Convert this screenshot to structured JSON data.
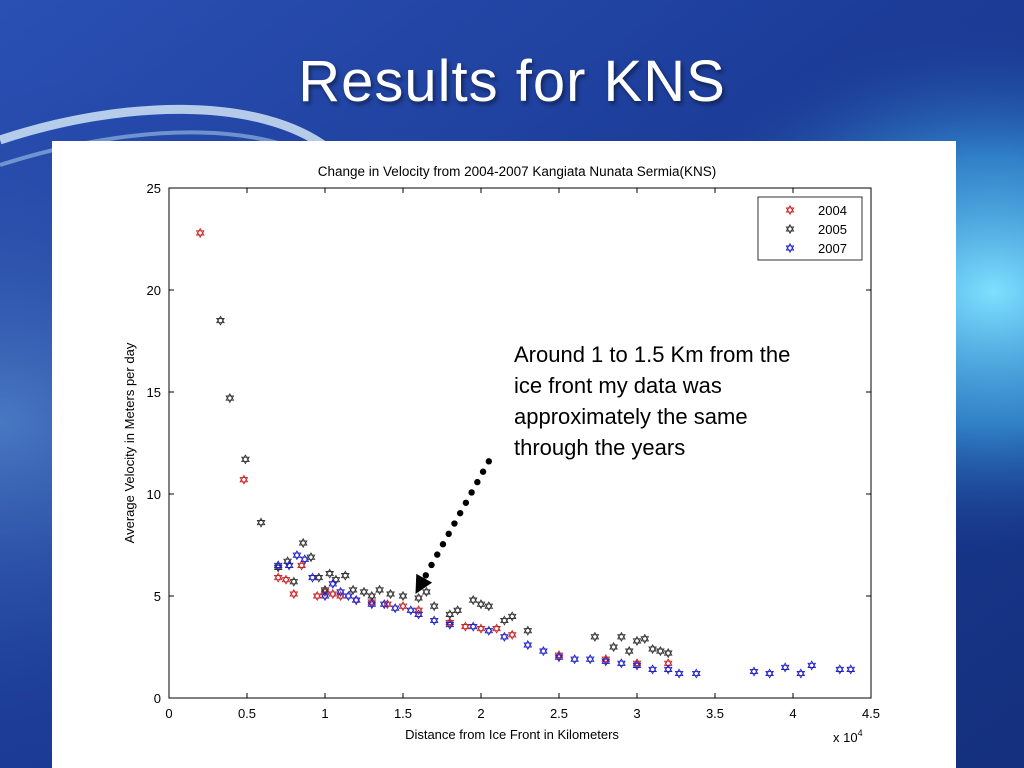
{
  "slide": {
    "title": "Results for KNS"
  },
  "annotation": {
    "text": "Around 1 to 1.5 Km from the ice front my data was approximately the same through the years"
  },
  "colors": {
    "2004": "#cc2222",
    "2005": "#333333",
    "2007": "#2222cc",
    "background": "#1d3f96"
  },
  "chart_data": {
    "type": "scatter",
    "title": "Change in Velocity from 2004-2007 Kangiata Nunata Sermia(KNS)",
    "xlabel": "Distance from Ice Front in Kilometers",
    "ylabel": "Average Velocity in Meters per day",
    "x_multiplier_label": "x 10",
    "x_multiplier_exp": "4",
    "xlim": [
      0,
      4.5
    ],
    "ylim": [
      0,
      25
    ],
    "xticks": [
      "0",
      "0.5",
      "1",
      "1.5",
      "2",
      "2.5",
      "3",
      "3.5",
      "4",
      "4.5"
    ],
    "yticks": [
      "0",
      "5",
      "10",
      "15",
      "20",
      "25"
    ],
    "legend_position": "top-right",
    "marker": "hexagram",
    "series": [
      {
        "name": "2004",
        "color": "#cc2222",
        "points": [
          [
            0.2,
            22.8
          ],
          [
            0.48,
            10.7
          ],
          [
            0.7,
            5.9
          ],
          [
            0.75,
            5.8
          ],
          [
            0.8,
            5.1
          ],
          [
            0.85,
            6.5
          ],
          [
            0.95,
            5.0
          ],
          [
            1.0,
            5.2
          ],
          [
            1.05,
            5.1
          ],
          [
            1.1,
            5.0
          ],
          [
            1.2,
            4.8
          ],
          [
            1.3,
            4.7
          ],
          [
            1.4,
            4.6
          ],
          [
            1.5,
            4.5
          ],
          [
            1.6,
            4.3
          ],
          [
            1.8,
            3.7
          ],
          [
            1.9,
            3.5
          ],
          [
            2.0,
            3.4
          ],
          [
            2.1,
            3.4
          ],
          [
            2.2,
            3.1
          ],
          [
            2.5,
            2.1
          ],
          [
            2.8,
            1.9
          ],
          [
            3.0,
            1.7
          ],
          [
            3.2,
            1.7
          ]
        ]
      },
      {
        "name": "2005",
        "color": "#333333",
        "points": [
          [
            0.33,
            18.5
          ],
          [
            0.39,
            14.7
          ],
          [
            0.49,
            11.7
          ],
          [
            0.59,
            8.6
          ],
          [
            0.7,
            6.4
          ],
          [
            0.76,
            6.7
          ],
          [
            0.8,
            5.7
          ],
          [
            0.86,
            7.6
          ],
          [
            0.91,
            6.9
          ],
          [
            0.96,
            5.9
          ],
          [
            1.0,
            5.3
          ],
          [
            1.03,
            6.1
          ],
          [
            1.07,
            5.8
          ],
          [
            1.13,
            6.0
          ],
          [
            1.18,
            5.3
          ],
          [
            1.25,
            5.2
          ],
          [
            1.3,
            5.0
          ],
          [
            1.35,
            5.3
          ],
          [
            1.42,
            5.1
          ],
          [
            1.5,
            5.0
          ],
          [
            1.6,
            4.9
          ],
          [
            1.65,
            5.2
          ],
          [
            1.7,
            4.5
          ],
          [
            1.8,
            4.1
          ],
          [
            1.85,
            4.3
          ],
          [
            1.95,
            4.8
          ],
          [
            2.0,
            4.6
          ],
          [
            2.05,
            4.5
          ],
          [
            2.15,
            3.8
          ],
          [
            2.2,
            4.0
          ],
          [
            2.3,
            3.3
          ],
          [
            2.73,
            3.0
          ],
          [
            2.85,
            2.5
          ],
          [
            2.9,
            3.0
          ],
          [
            2.95,
            2.3
          ],
          [
            3.0,
            2.8
          ],
          [
            3.05,
            2.9
          ],
          [
            3.1,
            2.4
          ],
          [
            3.15,
            2.3
          ],
          [
            3.2,
            2.2
          ]
        ]
      },
      {
        "name": "2007",
        "color": "#2222cc",
        "points": [
          [
            0.7,
            6.5
          ],
          [
            0.77,
            6.5
          ],
          [
            0.82,
            7.0
          ],
          [
            0.87,
            6.8
          ],
          [
            0.92,
            5.9
          ],
          [
            1.0,
            5.0
          ],
          [
            1.05,
            5.6
          ],
          [
            1.1,
            5.2
          ],
          [
            1.15,
            5.0
          ],
          [
            1.2,
            4.8
          ],
          [
            1.3,
            4.6
          ],
          [
            1.38,
            4.6
          ],
          [
            1.45,
            4.4
          ],
          [
            1.55,
            4.3
          ],
          [
            1.6,
            4.1
          ],
          [
            1.7,
            3.8
          ],
          [
            1.8,
            3.6
          ],
          [
            1.95,
            3.5
          ],
          [
            2.05,
            3.3
          ],
          [
            2.15,
            3.0
          ],
          [
            2.3,
            2.6
          ],
          [
            2.4,
            2.3
          ],
          [
            2.5,
            2.0
          ],
          [
            2.6,
            1.9
          ],
          [
            2.7,
            1.9
          ],
          [
            2.8,
            1.8
          ],
          [
            2.9,
            1.7
          ],
          [
            3.0,
            1.6
          ],
          [
            3.1,
            1.4
          ],
          [
            3.2,
            1.4
          ],
          [
            3.27,
            1.2
          ],
          [
            3.38,
            1.2
          ],
          [
            3.75,
            1.3
          ],
          [
            3.85,
            1.2
          ],
          [
            3.95,
            1.5
          ],
          [
            4.05,
            1.2
          ],
          [
            4.12,
            1.6
          ],
          [
            4.3,
            1.4
          ],
          [
            4.37,
            1.4
          ]
        ]
      }
    ],
    "arrow": {
      "from": [
        2.05,
        11.6
      ],
      "to": [
        1.58,
        5.1
      ]
    }
  }
}
